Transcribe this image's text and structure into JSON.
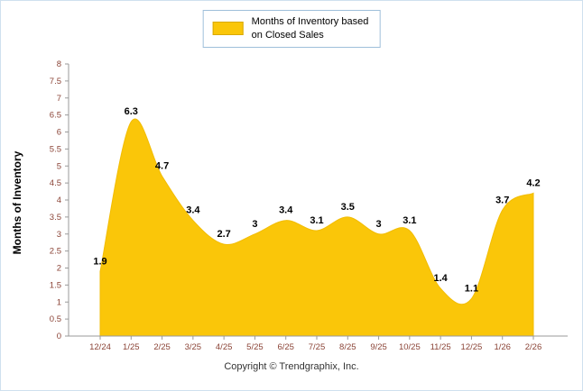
{
  "footer": {
    "copyright": "Copyright © Trendgraphix, Inc."
  },
  "chart_data": {
    "type": "area",
    "title": "",
    "xlabel": "",
    "ylabel": "Months of Inventory",
    "categories": [
      "12/24",
      "1/25",
      "2/25",
      "3/25",
      "4/25",
      "5/25",
      "6/25",
      "7/25",
      "8/25",
      "9/25",
      "10/25",
      "11/25",
      "12/25",
      "1/26",
      "2/26"
    ],
    "values": [
      1.9,
      6.3,
      4.7,
      3.4,
      2.7,
      3,
      3.4,
      3.1,
      3.5,
      3,
      3.1,
      1.4,
      1.1,
      3.7,
      4.2
    ],
    "value_labels": [
      "1.9",
      "6.3",
      "4.7",
      "3.4",
      "2.7",
      "3",
      "3.4",
      "3.1",
      "3.5",
      "3",
      "3.1",
      "1.4",
      "1.1",
      "3.7",
      "4.2"
    ],
    "ylim": [
      0,
      8
    ],
    "ytick_step": 0.5,
    "grid": false,
    "legend_position": "top",
    "legend": {
      "line1": "Months of Inventory based",
      "line2": "on Closed Sales"
    },
    "colors": {
      "area": "#FAC609",
      "area_edge": "#F2BC02",
      "data_label": "#000000",
      "tick_label": "#8B4437",
      "axis_line": "#9a9a9a",
      "legend_border": "#9fbfda"
    }
  }
}
